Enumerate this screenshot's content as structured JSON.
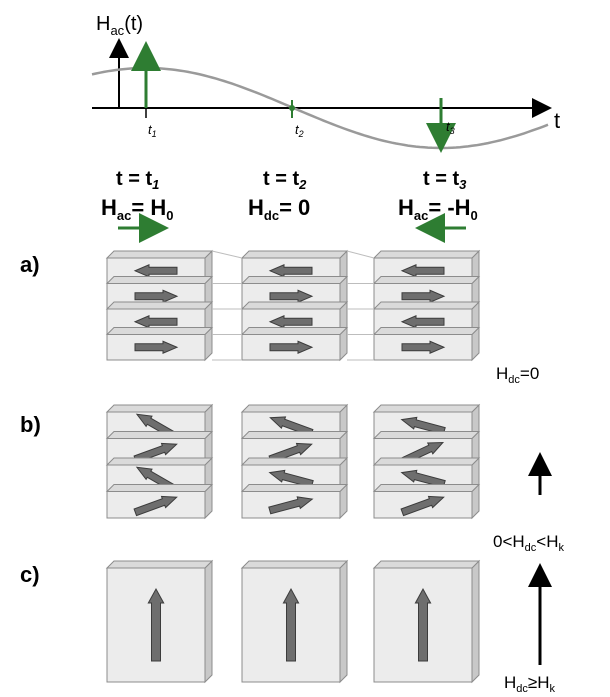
{
  "axis": {
    "y_label": "H",
    "y_label_sub": "ac",
    "y_label_tail": "(t)",
    "x_label": "t",
    "tick_labels": [
      {
        "base": "t",
        "sub": "1"
      },
      {
        "base": "t",
        "sub": "2"
      },
      {
        "base": "t",
        "sub": "3"
      }
    ]
  },
  "columns": [
    {
      "time_base": "t = t",
      "time_sub": "1",
      "field_base": "H",
      "field_sub": "ac",
      "field_tail": "= H",
      "field_tail_sub": "0",
      "field_arrow": "right"
    },
    {
      "time_base": "t = t",
      "time_sub": "2",
      "field_base": "H",
      "field_sub": "dc",
      "field_tail": "= 0",
      "field_tail_sub": "",
      "field_arrow": "none"
    },
    {
      "time_base": "t = t",
      "time_sub": "3",
      "field_base": "H",
      "field_sub": "ac",
      "field_tail": "= -H",
      "field_tail_sub": "0",
      "field_arrow": "left"
    }
  ],
  "row_labels": [
    "a)",
    "b)",
    "c)"
  ],
  "side_labels": [
    {
      "base": "H",
      "sub": "dc",
      "tail": "=0"
    },
    {
      "pre": "0<H",
      "sub": "dc",
      "mid": "<H",
      "sub2": "k"
    },
    {
      "base": "H",
      "sub": "dc",
      "tail": "≥H",
      "sub2": "k"
    }
  ],
  "rows": {
    "a": [
      [
        180,
        0,
        180,
        0
      ],
      [
        180,
        0,
        180,
        0
      ],
      [
        180,
        0,
        180,
        0
      ]
    ],
    "b": [
      [
        150,
        20,
        150,
        20
      ],
      [
        160,
        20,
        165,
        15
      ],
      [
        165,
        25,
        165,
        20
      ]
    ],
    "c": [
      90,
      90,
      90
    ]
  },
  "colors": {
    "green": "#2e7d32",
    "block_face": "#ececec",
    "block_side": "#c8c8c8",
    "arrow_fill": "#6e6e6e",
    "curve": "#9a9a9a"
  }
}
